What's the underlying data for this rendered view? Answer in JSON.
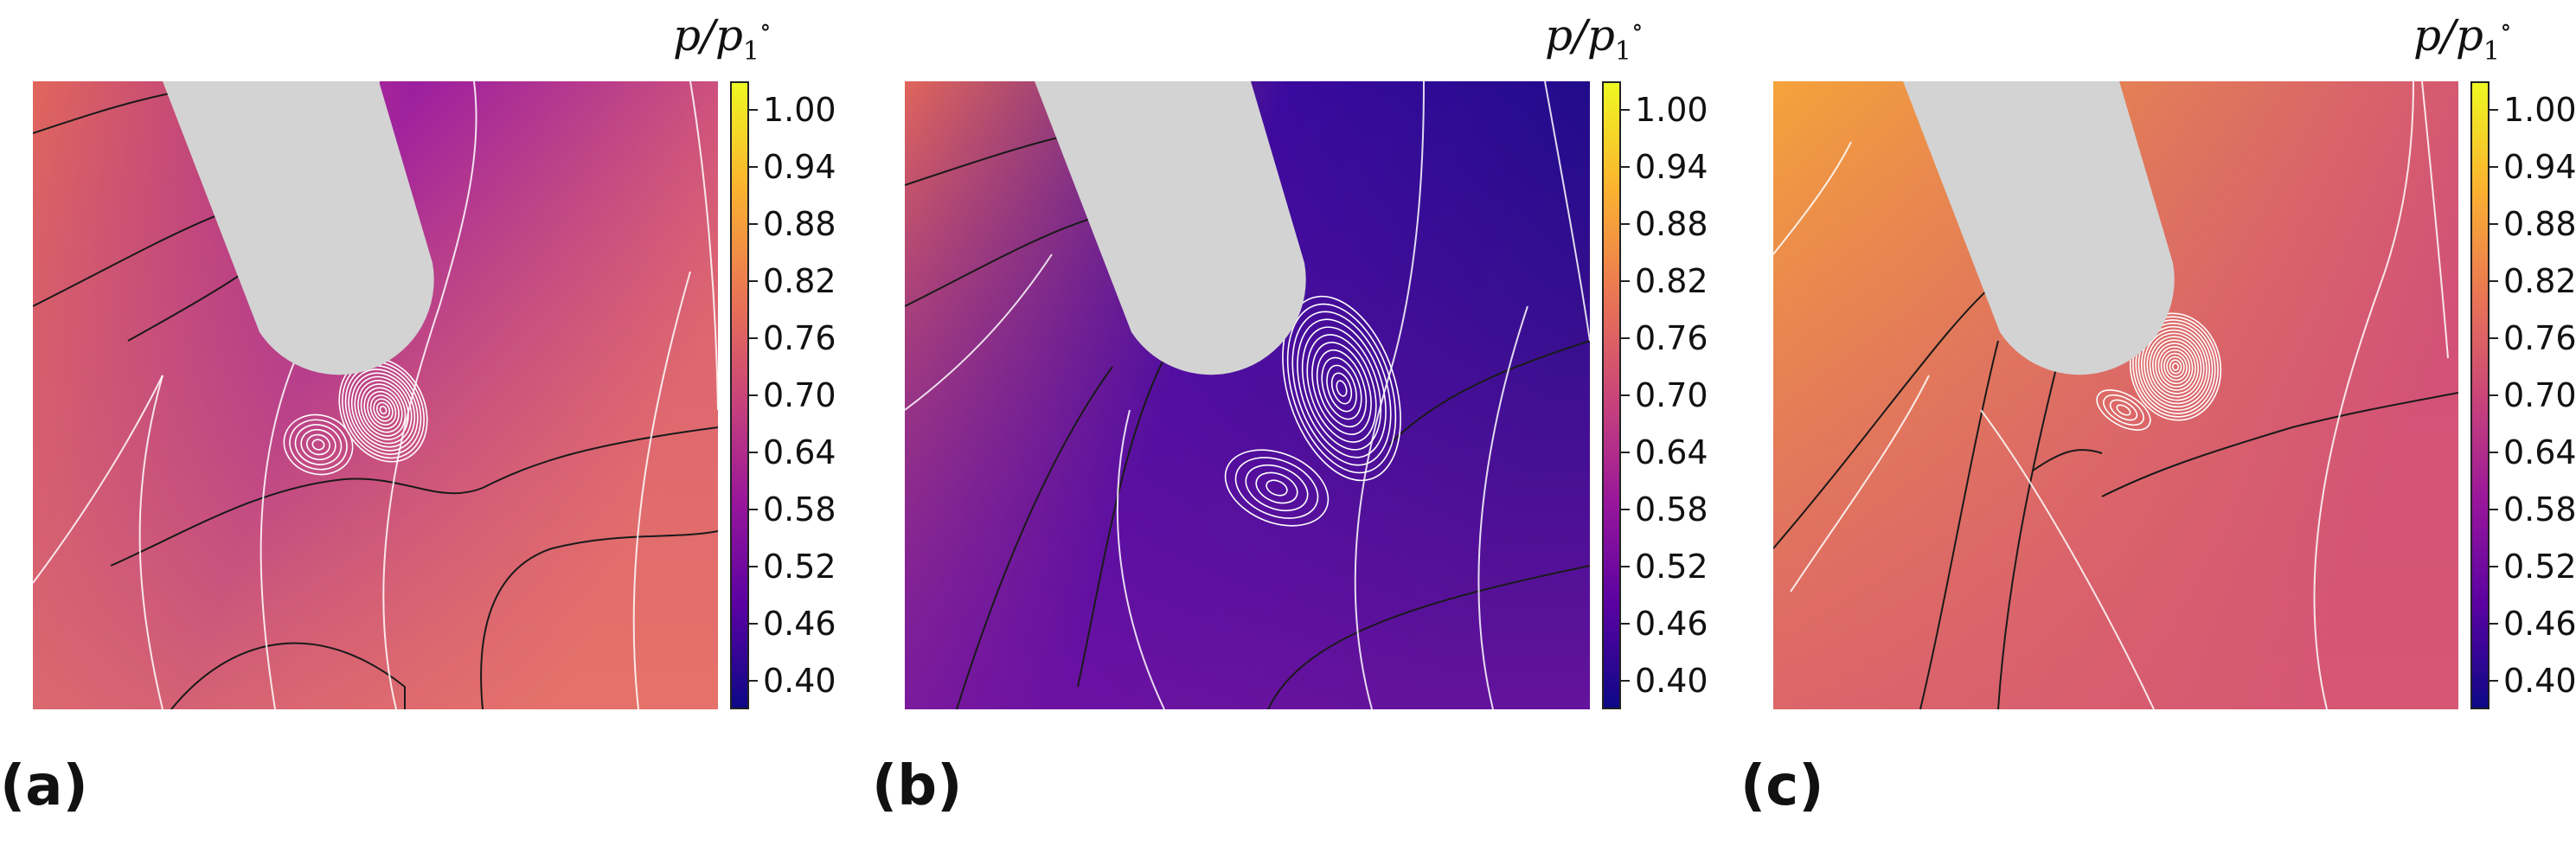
{
  "colorbar": {
    "label_var": "p/p",
    "label_sub": "1",
    "label_sup": "∘",
    "ticks": [
      "1.00",
      "0.94",
      "0.88",
      "0.82",
      "0.76",
      "0.70",
      "0.64",
      "0.58",
      "0.52",
      "0.46",
      "0.40"
    ],
    "tick_values": [
      1.0,
      0.94,
      0.88,
      0.82,
      0.76,
      0.7,
      0.64,
      0.58,
      0.52,
      0.46,
      0.4
    ],
    "range": [
      0.37,
      1.03
    ],
    "gradient": [
      "#0d0887",
      "#5b02a3",
      "#9a179b",
      "#cb4678",
      "#eb7852",
      "#fbb32f",
      "#eff821"
    ]
  },
  "panels": [
    {
      "label": "(a)",
      "bg_left": "#e0665c",
      "bg_mid": "#9c1ea0",
      "bg_right": "#d95f74",
      "bg_bottom": "#e87866"
    },
    {
      "label": "(b)",
      "bg_left": "#e0665c",
      "bg_mid": "#3a0a9e",
      "bg_right": "#1a0c86",
      "bg_bottom": "#7c14a4"
    },
    {
      "label": "(c)",
      "bg_left": "#f5a33a",
      "bg_mid": "#e27c58",
      "bg_right": "#d04f78",
      "bg_bottom": "#d75a72"
    }
  ],
  "colors": {
    "body": "#d3d3d3",
    "streamline": "#ffffff",
    "isoline": "#1a1a1a"
  }
}
